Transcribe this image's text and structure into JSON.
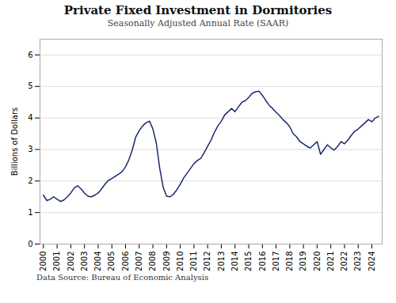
{
  "chart_data": {
    "type": "line",
    "title": "Private Fixed Investment in Dormitories",
    "subtitle": "Seasonally Adjusted Annual Rate (SAAR)",
    "ylabel": "Billions of Dollars",
    "caption": "Data Source: Bureau of Economic Analysis",
    "color": "#1b2a6b",
    "grid": true,
    "xlim": [
      1999.75,
      2024.75
    ],
    "xticks": [
      2000,
      2001,
      2002,
      2003,
      2004,
      2005,
      2006,
      2007,
      2008,
      2009,
      2010,
      2011,
      2012,
      2013,
      2014,
      2015,
      2016,
      2017,
      2018,
      2019,
      2020,
      2021,
      2022,
      2023,
      2024
    ],
    "ylim": [
      0,
      6.5
    ],
    "yticks": [
      0,
      1,
      2,
      3,
      4,
      5,
      6
    ],
    "x": [
      2000.0,
      2000.25,
      2000.5,
      2000.75,
      2001.0,
      2001.25,
      2001.5,
      2001.75,
      2002.0,
      2002.25,
      2002.5,
      2002.75,
      2003.0,
      2003.25,
      2003.5,
      2003.75,
      2004.0,
      2004.25,
      2004.5,
      2004.75,
      2005.0,
      2005.25,
      2005.5,
      2005.75,
      2006.0,
      2006.25,
      2006.5,
      2006.75,
      2007.0,
      2007.25,
      2007.5,
      2007.75,
      2008.0,
      2008.25,
      2008.5,
      2008.75,
      2009.0,
      2009.25,
      2009.5,
      2009.75,
      2010.0,
      2010.25,
      2010.5,
      2010.75,
      2011.0,
      2011.25,
      2011.5,
      2011.75,
      2012.0,
      2012.25,
      2012.5,
      2012.75,
      2013.0,
      2013.25,
      2013.5,
      2013.75,
      2014.0,
      2014.25,
      2014.5,
      2014.75,
      2015.0,
      2015.25,
      2015.5,
      2015.75,
      2016.0,
      2016.25,
      2016.5,
      2016.75,
      2017.0,
      2017.25,
      2017.5,
      2017.75,
      2018.0,
      2018.25,
      2018.5,
      2018.75,
      2019.0,
      2019.25,
      2019.5,
      2019.75,
      2020.0,
      2020.25,
      2020.5,
      2020.75,
      2021.0,
      2021.25,
      2021.5,
      2021.75,
      2022.0,
      2022.25,
      2022.5,
      2022.75,
      2023.0,
      2023.25,
      2023.5,
      2023.75,
      2024.0,
      2024.25,
      2024.5
    ],
    "values": [
      1.55,
      1.38,
      1.42,
      1.5,
      1.42,
      1.35,
      1.4,
      1.5,
      1.62,
      1.78,
      1.85,
      1.75,
      1.62,
      1.52,
      1.5,
      1.55,
      1.62,
      1.75,
      1.9,
      2.02,
      2.08,
      2.15,
      2.22,
      2.3,
      2.45,
      2.68,
      3.0,
      3.4,
      3.6,
      3.75,
      3.85,
      3.9,
      3.65,
      3.2,
      2.4,
      1.8,
      1.52,
      1.5,
      1.58,
      1.72,
      1.9,
      2.1,
      2.25,
      2.4,
      2.55,
      2.65,
      2.72,
      2.9,
      3.1,
      3.3,
      3.55,
      3.75,
      3.9,
      4.1,
      4.2,
      4.3,
      4.2,
      4.35,
      4.5,
      4.55,
      4.65,
      4.78,
      4.83,
      4.85,
      4.72,
      4.55,
      4.4,
      4.3,
      4.18,
      4.08,
      3.95,
      3.85,
      3.72,
      3.5,
      3.4,
      3.25,
      3.18,
      3.1,
      3.05,
      3.15,
      3.25,
      2.85,
      3.0,
      3.15,
      3.05,
      2.98,
      3.1,
      3.25,
      3.18,
      3.3,
      3.45,
      3.58,
      3.65,
      3.75,
      3.85,
      3.95,
      3.88,
      4.0,
      4.05
    ]
  }
}
